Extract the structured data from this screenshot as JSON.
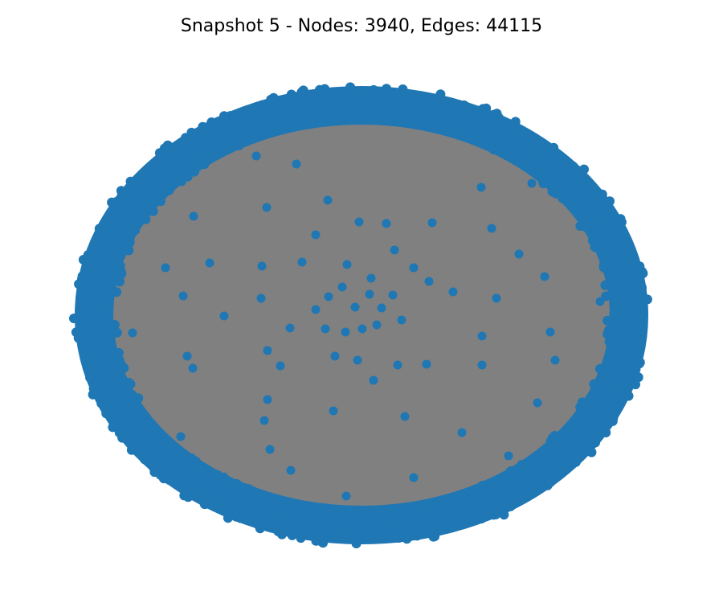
{
  "title": "Snapshot 5 - Nodes: 3940, Edges: 44115",
  "colors": {
    "node": "#1f77b4",
    "edge": "#808080",
    "background": "#ffffff",
    "text": "#000000"
  },
  "graph": {
    "snapshot": 5,
    "node_count": 3940,
    "edge_count": 44115
  }
}
